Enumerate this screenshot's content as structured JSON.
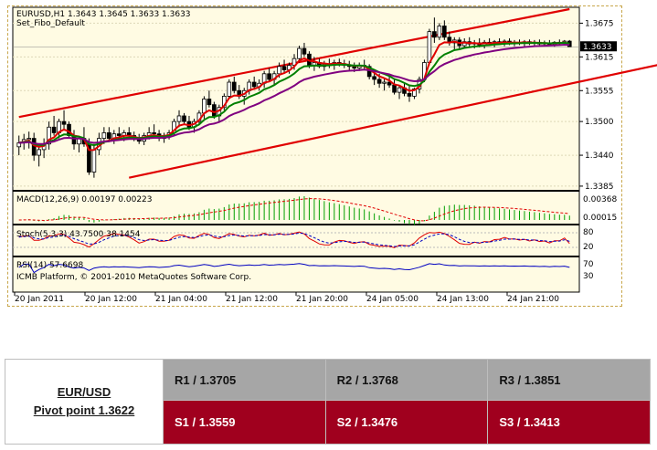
{
  "chart_header": {
    "symbol_line": "EURUSD,H1  1.3643 1.3645 1.3633 1.3633",
    "template": "Set_Fibo_Default"
  },
  "indicators": {
    "macd": {
      "label": "MACD(12,26,9) 0.00197 0.00223",
      "scale_top": "0.00368",
      "scale_zero": "0.00015"
    },
    "stoch": {
      "label": "Stoch(5,3,3) 43.7500 38.1454",
      "scale_top": "80",
      "scale_bottom": "20"
    },
    "rsi": {
      "label": "RSI(14) 57.6698",
      "scale_top": "70",
      "scale_bottom": "30"
    }
  },
  "copyright": "ICMB Platform, © 2001-2010 MetaQuotes Software Corp.",
  "price_scale": [
    "1.3675",
    "1.3615",
    "1.3555",
    "1.3500",
    "1.3440",
    "1.3385"
  ],
  "current_price": "1.3633",
  "time_axis": [
    "20 Jan 2011",
    "20 Jan 12:00",
    "21 Jan 04:00",
    "21 Jan 12:00",
    "21 Jan 20:00",
    "24 Jan 05:00",
    "24 Jan 13:00",
    "24 Jan 21:00"
  ],
  "colors": {
    "bull": "#ffffff",
    "bear": "#000000",
    "channel": "#e00000",
    "ma_fast": "#e00000",
    "ma_mid": "#008000",
    "ma_slow": "#800080",
    "macd_hist": "#00a000",
    "resistance_bg": "#a6a6a6",
    "support_bg": "#a0001e"
  },
  "chart_data": {
    "type": "candlestick",
    "symbol": "EURUSD",
    "timeframe": "H1",
    "x": [
      0,
      1,
      2,
      3,
      4,
      5,
      6,
      7,
      8,
      9,
      10,
      11,
      12,
      13,
      14,
      15,
      16,
      17,
      18,
      19,
      20,
      21,
      22,
      23,
      24,
      25,
      26,
      27,
      28,
      29,
      30,
      31,
      32,
      33,
      34,
      35,
      36,
      37,
      38,
      39,
      40,
      41,
      42,
      43,
      44,
      45,
      46,
      47,
      48,
      49,
      50,
      51,
      52,
      53,
      54,
      55,
      56,
      57,
      58,
      59,
      60,
      61,
      62,
      63,
      64,
      65,
      66,
      67,
      68,
      69,
      70,
      71,
      72,
      73,
      74,
      75,
      76,
      77,
      78,
      79,
      80,
      81,
      82,
      83,
      84,
      85,
      86,
      87,
      88,
      89,
      90,
      91,
      92,
      93,
      94,
      95,
      96,
      97,
      98,
      99,
      100,
      101,
      102,
      103,
      104,
      105,
      106,
      107,
      108,
      109,
      110
    ],
    "ohlc": [
      [
        1.3455,
        1.3475,
        1.344,
        1.3462
      ],
      [
        1.3462,
        1.3478,
        1.345,
        1.3468
      ],
      [
        1.3468,
        1.3482,
        1.3452,
        1.347
      ],
      [
        1.347,
        1.348,
        1.343,
        1.344
      ],
      [
        1.344,
        1.3455,
        1.342,
        1.345
      ],
      [
        1.345,
        1.347,
        1.3435,
        1.346
      ],
      [
        1.346,
        1.35,
        1.345,
        1.349
      ],
      [
        1.349,
        1.351,
        1.3475,
        1.348
      ],
      [
        1.348,
        1.3505,
        1.347,
        1.35
      ],
      [
        1.35,
        1.352,
        1.3485,
        1.3495
      ],
      [
        1.3495,
        1.35,
        1.347,
        1.3475
      ],
      [
        1.3475,
        1.3485,
        1.345,
        1.346
      ],
      [
        1.346,
        1.3475,
        1.3445,
        1.347
      ],
      [
        1.347,
        1.349,
        1.3455,
        1.346
      ],
      [
        1.346,
        1.347,
        1.3405,
        1.341
      ],
      [
        1.341,
        1.346,
        1.34,
        1.345
      ],
      [
        1.345,
        1.348,
        1.344,
        1.347
      ],
      [
        1.347,
        1.349,
        1.346,
        1.348
      ],
      [
        1.348,
        1.349,
        1.3465,
        1.347
      ],
      [
        1.347,
        1.3485,
        1.346,
        1.3478
      ],
      [
        1.3478,
        1.349,
        1.3468,
        1.3475
      ],
      [
        1.3475,
        1.3485,
        1.3465,
        1.348
      ],
      [
        1.348,
        1.349,
        1.347,
        1.3475
      ],
      [
        1.3475,
        1.3482,
        1.3465,
        1.347
      ],
      [
        1.347,
        1.3478,
        1.346,
        1.3465
      ],
      [
        1.3465,
        1.348,
        1.3458,
        1.3475
      ],
      [
        1.3475,
        1.349,
        1.3468,
        1.348
      ],
      [
        1.348,
        1.3495,
        1.347,
        1.3478
      ],
      [
        1.3478,
        1.3485,
        1.3465,
        1.347
      ],
      [
        1.347,
        1.348,
        1.3462,
        1.3475
      ],
      [
        1.3475,
        1.3485,
        1.3468,
        1.348
      ],
      [
        1.348,
        1.3505,
        1.3475,
        1.35
      ],
      [
        1.35,
        1.352,
        1.349,
        1.351
      ],
      [
        1.351,
        1.3515,
        1.3495,
        1.35
      ],
      [
        1.35,
        1.351,
        1.3485,
        1.349
      ],
      [
        1.349,
        1.3505,
        1.348,
        1.35
      ],
      [
        1.35,
        1.352,
        1.3495,
        1.3515
      ],
      [
        1.3515,
        1.3545,
        1.3505,
        1.354
      ],
      [
        1.354,
        1.3555,
        1.3525,
        1.353
      ],
      [
        1.353,
        1.3535,
        1.3505,
        1.351
      ],
      [
        1.351,
        1.353,
        1.35,
        1.3525
      ],
      [
        1.3525,
        1.355,
        1.352,
        1.3545
      ],
      [
        1.3545,
        1.3575,
        1.354,
        1.357
      ],
      [
        1.357,
        1.358,
        1.355,
        1.3555
      ],
      [
        1.3555,
        1.3565,
        1.354,
        1.3545
      ],
      [
        1.3545,
        1.356,
        1.353,
        1.3555
      ],
      [
        1.3555,
        1.3575,
        1.3548,
        1.357
      ],
      [
        1.357,
        1.358,
        1.3558,
        1.3562
      ],
      [
        1.3562,
        1.3575,
        1.3555,
        1.3568
      ],
      [
        1.3568,
        1.359,
        1.356,
        1.3585
      ],
      [
        1.3585,
        1.3595,
        1.357,
        1.3575
      ],
      [
        1.3575,
        1.359,
        1.3565,
        1.3585
      ],
      [
        1.3585,
        1.3605,
        1.3578,
        1.3598
      ],
      [
        1.3598,
        1.361,
        1.3585,
        1.3592
      ],
      [
        1.3592,
        1.3605,
        1.3585,
        1.36
      ],
      [
        1.36,
        1.362,
        1.3592,
        1.3612
      ],
      [
        1.3612,
        1.3635,
        1.3605,
        1.363
      ],
      [
        1.363,
        1.364,
        1.3615,
        1.362
      ],
      [
        1.362,
        1.3625,
        1.3595,
        1.36
      ],
      [
        1.36,
        1.3615,
        1.359,
        1.3605
      ],
      [
        1.3605,
        1.3612,
        1.3595,
        1.3598
      ],
      [
        1.3598,
        1.3608,
        1.359,
        1.3602
      ],
      [
        1.3602,
        1.3612,
        1.3595,
        1.36
      ],
      [
        1.36,
        1.361,
        1.3592,
        1.3605
      ],
      [
        1.3605,
        1.3612,
        1.3598,
        1.3603
      ],
      [
        1.3603,
        1.361,
        1.3595,
        1.36
      ],
      [
        1.36,
        1.3608,
        1.3592,
        1.3598
      ],
      [
        1.3598,
        1.3605,
        1.3588,
        1.3595
      ],
      [
        1.3595,
        1.3605,
        1.359,
        1.36
      ],
      [
        1.36,
        1.361,
        1.3592,
        1.3598
      ],
      [
        1.3598,
        1.3602,
        1.3575,
        1.358
      ],
      [
        1.358,
        1.359,
        1.3565,
        1.3575
      ],
      [
        1.3575,
        1.3585,
        1.356,
        1.3568
      ],
      [
        1.3568,
        1.3578,
        1.3555,
        1.357
      ],
      [
        1.357,
        1.358,
        1.356,
        1.3565
      ],
      [
        1.3565,
        1.3575,
        1.3548,
        1.3552
      ],
      [
        1.3552,
        1.3565,
        1.354,
        1.356
      ],
      [
        1.356,
        1.357,
        1.3545,
        1.355
      ],
      [
        1.355,
        1.3565,
        1.3535,
        1.3545
      ],
      [
        1.3545,
        1.356,
        1.354,
        1.3558
      ],
      [
        1.3558,
        1.358,
        1.355,
        1.3575
      ],
      [
        1.3575,
        1.361,
        1.357,
        1.3605
      ],
      [
        1.3605,
        1.3665,
        1.36,
        1.366
      ],
      [
        1.366,
        1.3685,
        1.364,
        1.365
      ],
      [
        1.365,
        1.3675,
        1.3645,
        1.367
      ],
      [
        1.367,
        1.368,
        1.3645,
        1.365
      ],
      [
        1.365,
        1.366,
        1.3635,
        1.364
      ],
      [
        1.364,
        1.365,
        1.3628,
        1.3645
      ],
      [
        1.3645,
        1.365,
        1.363,
        1.3635
      ],
      [
        1.3635,
        1.3648,
        1.363,
        1.3642
      ],
      [
        1.3642,
        1.365,
        1.3632,
        1.3638
      ],
      [
        1.3638,
        1.3645,
        1.363,
        1.364
      ],
      [
        1.364,
        1.3648,
        1.3632,
        1.3636
      ],
      [
        1.3636,
        1.3645,
        1.363,
        1.3641
      ],
      [
        1.3641,
        1.3648,
        1.3635,
        1.3638
      ],
      [
        1.3638,
        1.3645,
        1.3632,
        1.3642
      ],
      [
        1.3642,
        1.3648,
        1.3636,
        1.364
      ],
      [
        1.364,
        1.3646,
        1.3634,
        1.3643
      ],
      [
        1.3643,
        1.3648,
        1.3636,
        1.3639
      ],
      [
        1.3639,
        1.3645,
        1.3634,
        1.3641
      ],
      [
        1.3641,
        1.3646,
        1.3636,
        1.364
      ],
      [
        1.364,
        1.3645,
        1.3634,
        1.3642
      ],
      [
        1.3642,
        1.3646,
        1.3636,
        1.3639
      ],
      [
        1.3639,
        1.3645,
        1.3634,
        1.3641
      ],
      [
        1.3641,
        1.3646,
        1.3636,
        1.3638
      ],
      [
        1.3638,
        1.3644,
        1.3634,
        1.364
      ],
      [
        1.364,
        1.3645,
        1.3635,
        1.3637
      ],
      [
        1.3637,
        1.3643,
        1.3633,
        1.3641
      ],
      [
        1.3641,
        1.3646,
        1.3636,
        1.3639
      ],
      [
        1.3639,
        1.3645,
        1.3635,
        1.3643
      ],
      [
        1.3643,
        1.3645,
        1.3633,
        1.3633
      ]
    ],
    "ylim": [
      1.338,
      1.37
    ],
    "channel_upper": [
      [
        0,
        1.3508
      ],
      [
        110,
        1.37
      ]
    ],
    "channel_lower": [
      [
        22,
        1.34
      ],
      [
        130,
        1.3605
      ]
    ]
  },
  "pivot": {
    "pair": "EUR/USD",
    "pivot_label": "Pivot point 1.3622",
    "resistances": [
      "R1 / 1.3705",
      "R2 / 1.3768",
      "R3 / 1.3851"
    ],
    "supports": [
      "S1 / 1.3559",
      "S2 / 1.3476",
      "S3 / 1.3413"
    ]
  }
}
